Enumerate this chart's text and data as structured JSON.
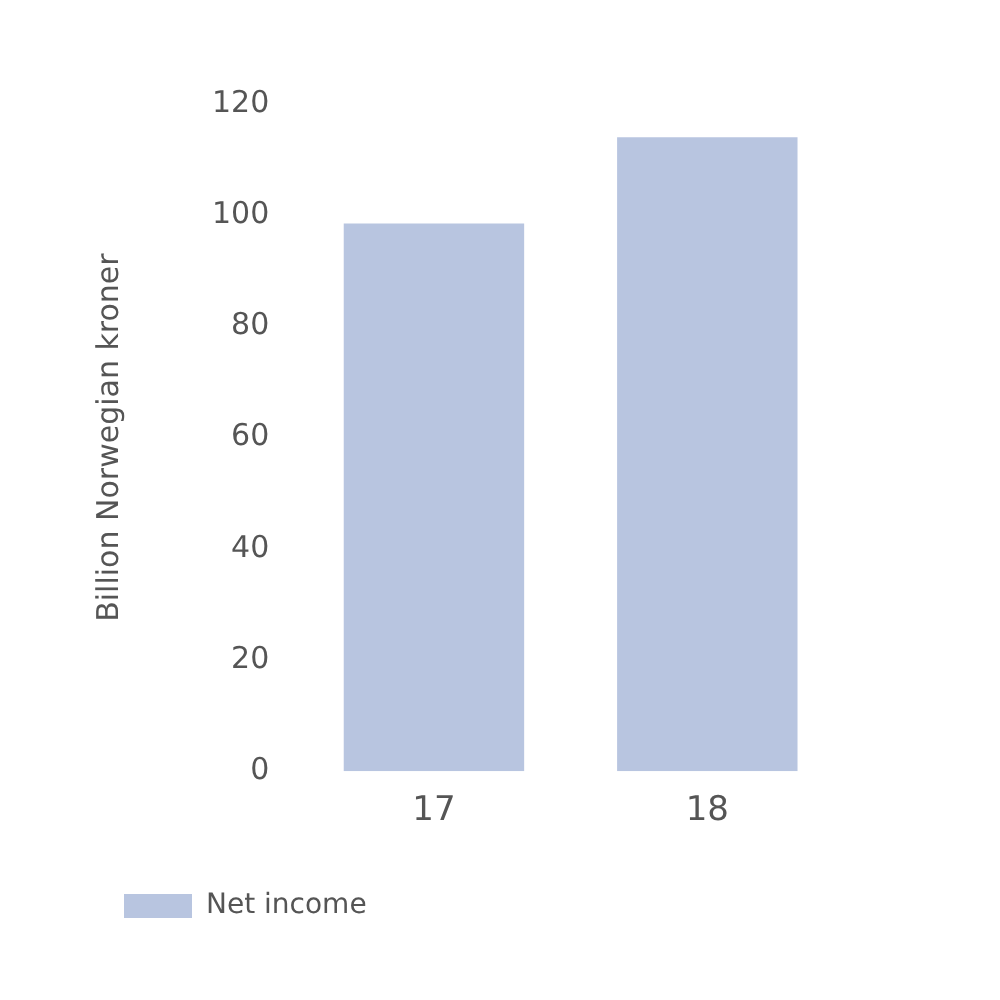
{
  "chart_data": {
    "type": "bar",
    "ylabel": "Billion Norwegian kroner",
    "categories": [
      "17",
      "18"
    ],
    "series": [
      {
        "name": "Net income",
        "color": "#b8c5e0",
        "values": [
          98.5,
          114
        ]
      }
    ],
    "ylim": [
      0,
      120
    ],
    "yticks": [
      0,
      20,
      40,
      60,
      80,
      100,
      120
    ],
    "grid": false,
    "legend": "bottom left"
  }
}
